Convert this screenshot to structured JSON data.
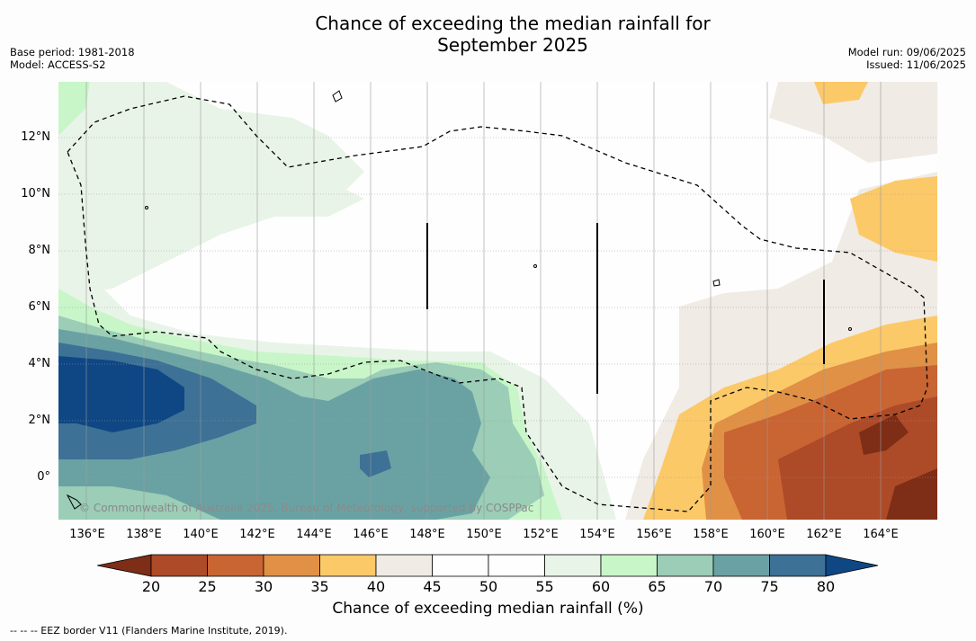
{
  "title": "Chance of exceeding the median rainfall for September 2025",
  "meta": {
    "base_period": "Base period: 1981-2018",
    "model": "Model: ACCESS-S2",
    "model_run": "Model run: 09/06/2025",
    "issued": "Issued: 11/06/2025"
  },
  "map": {
    "lon_labels": [
      "136°E",
      "138°E",
      "140°E",
      "142°E",
      "144°E",
      "146°E",
      "148°E",
      "150°E",
      "152°E",
      "154°E",
      "156°E",
      "158°E",
      "160°E",
      "162°E",
      "164°E"
    ],
    "lat_labels": [
      "12°N",
      "10°N",
      "8°N",
      "6°N",
      "4°N",
      "2°N",
      "0°"
    ],
    "copyright": "© Commonwealth of Australia 2025, Bureau of Meteorology, supported by COSPPac",
    "colors": {
      "c15_20": "#7e2d16",
      "c20_25": "#ad4a28",
      "c25_30": "#c96433",
      "c30_35": "#e09145",
      "c35_40": "#fcc968",
      "c40_45": "#f0ebe4",
      "c45_55": "#fefefe",
      "c55_60": "#e9f4e8",
      "c60_65": "#c8f6c8",
      "c65_70": "#9bcdb7",
      "c70_75": "#6aa2a4",
      "c75_80": "#3d7196",
      "c80_85": "#0f4785"
    }
  },
  "colorbar": {
    "ticks": [
      "20",
      "25",
      "30",
      "35",
      "40",
      "45",
      "50",
      "55",
      "60",
      "65",
      "70",
      "75",
      "80"
    ],
    "colors": [
      "#ad4a28",
      "#c96433",
      "#e09145",
      "#fcc968",
      "#f0ebe4",
      "#fefefe",
      "#fefefe",
      "#e9f4e8",
      "#c8f6c8",
      "#9bcdb7",
      "#6aa2a4",
      "#3d7196"
    ],
    "low_extend_color": "#7e2d16",
    "high_extend_color": "#0f4785",
    "label": "Chance of exceeding median rainfall (%)"
  },
  "footer": "--  --  -- EEZ border V11 (Flanders Marine Institute, 2019)."
}
